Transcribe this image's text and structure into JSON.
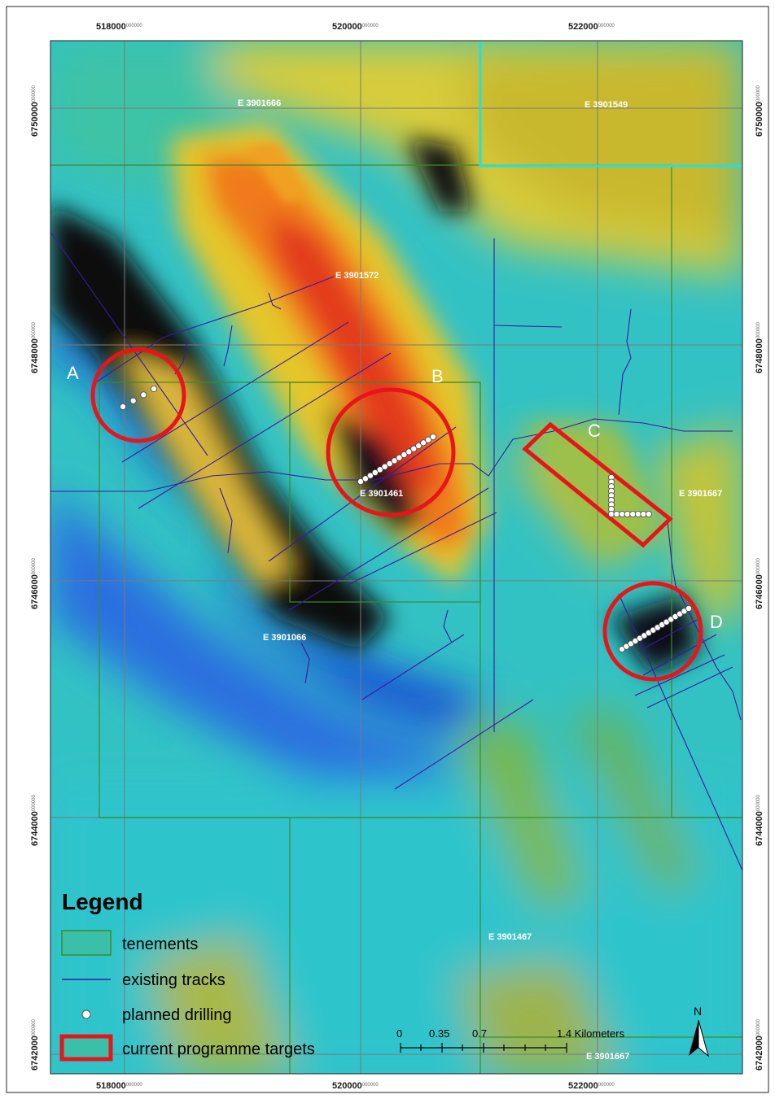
{
  "coordinates": {
    "easting_labels": [
      "518000",
      "520000",
      "522000"
    ],
    "easting_suffix": "000000",
    "northing_labels": [
      "6750000",
      "6748000",
      "6746000",
      "6744000",
      "6742000"
    ]
  },
  "tenements": [
    {
      "label": "E 3901666"
    },
    {
      "label": "E 3901549"
    },
    {
      "label": "E 3901572"
    },
    {
      "label": "E 3901461"
    },
    {
      "label": "E 3901667"
    },
    {
      "label": "E 3901066"
    },
    {
      "label": "E 3901467"
    },
    {
      "label": "E 3901667"
    }
  ],
  "targets": [
    {
      "letter": "A"
    },
    {
      "letter": "B"
    },
    {
      "letter": "C"
    },
    {
      "letter": "D"
    }
  ],
  "legend": {
    "title": "Legend",
    "items": [
      {
        "label": "tenements",
        "color": "#3b8c2a"
      },
      {
        "label": "existing tracks",
        "color": "#3a1aa0"
      },
      {
        "label": "planned drilling",
        "color": "#ffffff"
      },
      {
        "label": "current programme targets",
        "color": "#e8141a"
      }
    ]
  },
  "scale_bar": {
    "labels": [
      "0",
      "0.35",
      "0.7",
      "1.4 Kilometers"
    ]
  },
  "north_arrow": {
    "label": "N"
  },
  "colors": {
    "target_red": "#e8141a",
    "track_purple": "#3a1aa0",
    "tenement_green": "#3b8c2a",
    "highlight_cyan": "#22e0e0"
  }
}
